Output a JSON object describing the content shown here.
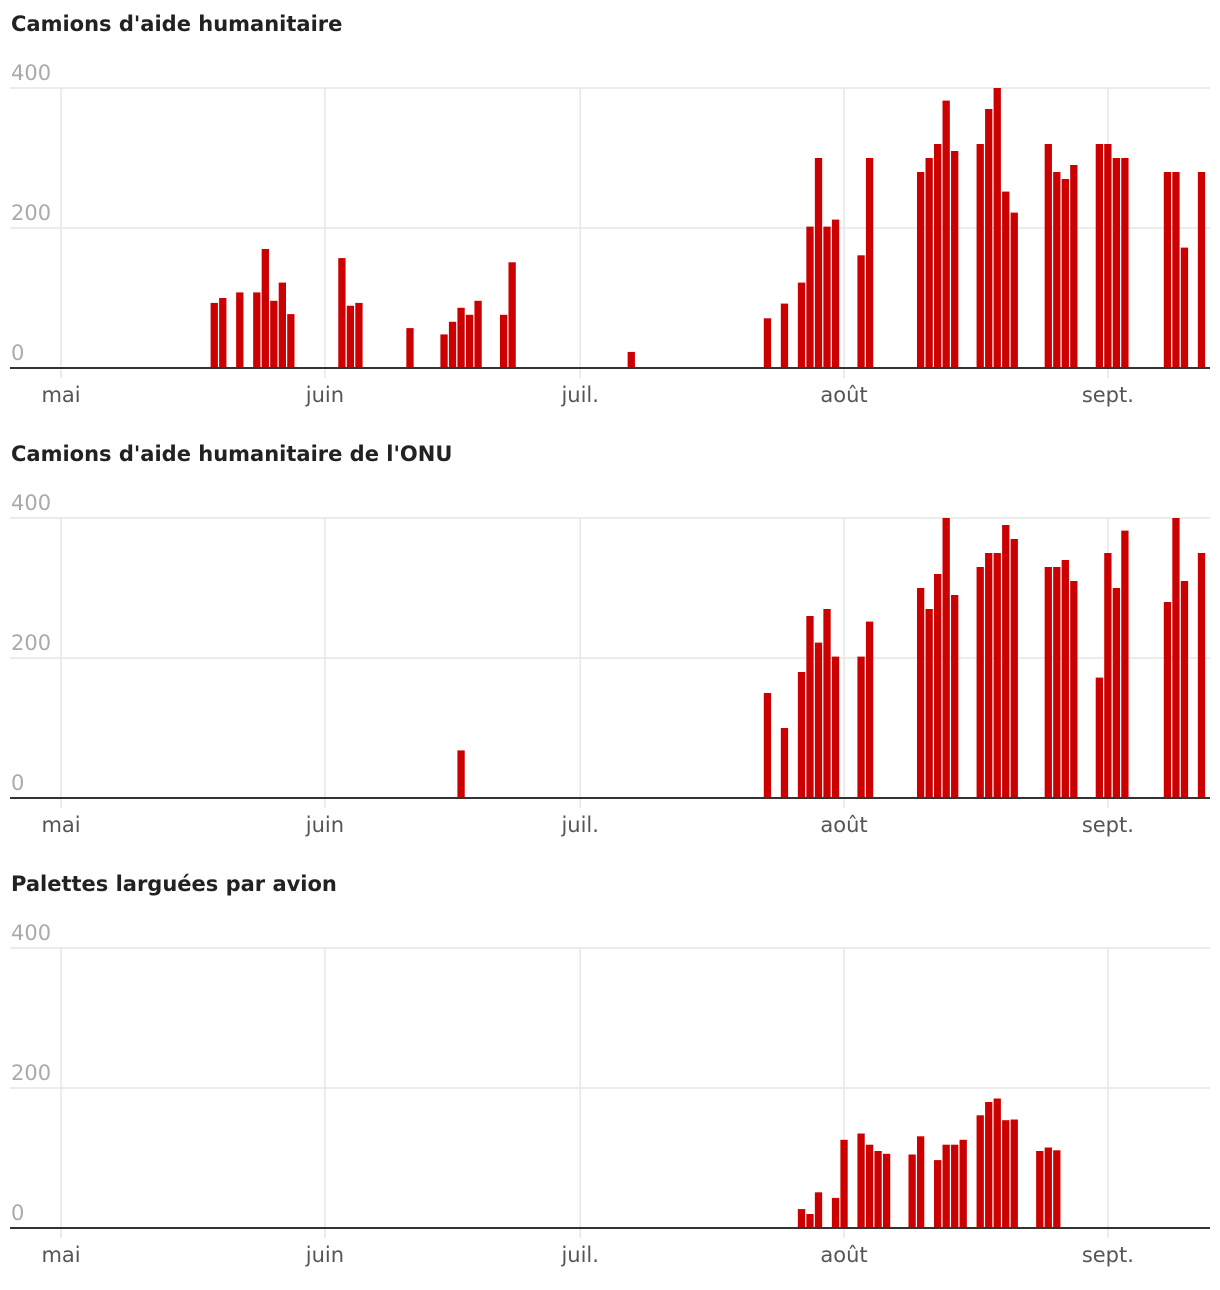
{
  "colors": {
    "bar": "#cc0000",
    "grid": "#e6e6e6",
    "axis": "#333333",
    "ytick": "#aaaaaa",
    "xtick": "#555555",
    "title": "#222222"
  },
  "chart_data": [
    {
      "type": "bar",
      "title": "Camions d'aide humanitaire",
      "xlabel": "",
      "ylabel": "",
      "ylim": [
        0,
        400
      ],
      "yticks": [
        "0",
        "200",
        "400"
      ],
      "xticks": [
        {
          "label": "mai",
          "day": 0
        },
        {
          "label": "juin",
          "day": 31
        },
        {
          "label": "juil.",
          "day": 61
        },
        {
          "label": "août",
          "day": 92
        },
        {
          "label": "sept.",
          "day": 123
        }
      ],
      "xdomain": [
        -6,
        135
      ],
      "note": "x = days since 1 May",
      "x": [
        18,
        19,
        21,
        23,
        24,
        25,
        26,
        27,
        33,
        34,
        35,
        41,
        45,
        46,
        47,
        48,
        49,
        52,
        53,
        67,
        83,
        85,
        87,
        88,
        89,
        90,
        91,
        94,
        95,
        101,
        102,
        103,
        104,
        105,
        108,
        109,
        110,
        111,
        112,
        116,
        117,
        118,
        119,
        122,
        123,
        124,
        125,
        130,
        131,
        132,
        134
      ],
      "values": [
        93,
        100,
        108,
        108,
        170,
        96,
        122,
        77,
        157,
        89,
        93,
        57,
        48,
        66,
        86,
        76,
        96,
        76,
        151,
        23,
        71,
        92,
        122,
        202,
        300,
        202,
        212,
        161,
        300,
        280,
        300,
        320,
        382,
        310,
        320,
        370,
        400,
        252,
        222,
        320,
        280,
        270,
        290,
        320,
        320,
        300,
        300,
        280,
        280,
        172,
        280
      ]
    },
    {
      "type": "bar",
      "title": "Camions d'aide humanitaire de l'ONU",
      "xlabel": "",
      "ylabel": "",
      "ylim": [
        0,
        400
      ],
      "yticks": [
        "0",
        "200",
        "400"
      ],
      "xticks": [
        {
          "label": "mai",
          "day": 0
        },
        {
          "label": "juin",
          "day": 31
        },
        {
          "label": "juil.",
          "day": 61
        },
        {
          "label": "août",
          "day": 92
        },
        {
          "label": "sept.",
          "day": 123
        }
      ],
      "xdomain": [
        -6,
        135
      ],
      "note": "x = days since 1 May",
      "x": [
        47,
        83,
        85,
        87,
        88,
        89,
        90,
        91,
        94,
        95,
        101,
        102,
        103,
        104,
        105,
        108,
        109,
        110,
        111,
        112,
        116,
        117,
        118,
        119,
        122,
        123,
        124,
        125,
        130,
        131,
        132,
        134
      ],
      "values": [
        68,
        150,
        100,
        180,
        260,
        222,
        270,
        202,
        202,
        252,
        300,
        270,
        320,
        400,
        290,
        330,
        350,
        350,
        390,
        370,
        330,
        330,
        340,
        310,
        172,
        350,
        300,
        382,
        280,
        400,
        310,
        350
      ]
    },
    {
      "type": "bar",
      "title": "Palettes larguées par avion",
      "xlabel": "",
      "ylabel": "",
      "ylim": [
        0,
        400
      ],
      "yticks": [
        "0",
        "200",
        "400"
      ],
      "xticks": [
        {
          "label": "mai",
          "day": 0
        },
        {
          "label": "juin",
          "day": 31
        },
        {
          "label": "juil.",
          "day": 61
        },
        {
          "label": "août",
          "day": 92
        },
        {
          "label": "sept.",
          "day": 123
        }
      ],
      "xdomain": [
        -6,
        135
      ],
      "note": "x = days since 1 May",
      "x": [
        87,
        88,
        89,
        91,
        92,
        94,
        95,
        96,
        97,
        100,
        101,
        103,
        104,
        105,
        106,
        108,
        109,
        110,
        111,
        112,
        115,
        116,
        117
      ],
      "values": [
        27,
        20,
        51,
        43,
        126,
        135,
        119,
        110,
        106,
        105,
        131,
        97,
        119,
        119,
        126,
        161,
        180,
        185,
        154,
        155,
        110,
        115,
        111
      ]
    }
  ]
}
